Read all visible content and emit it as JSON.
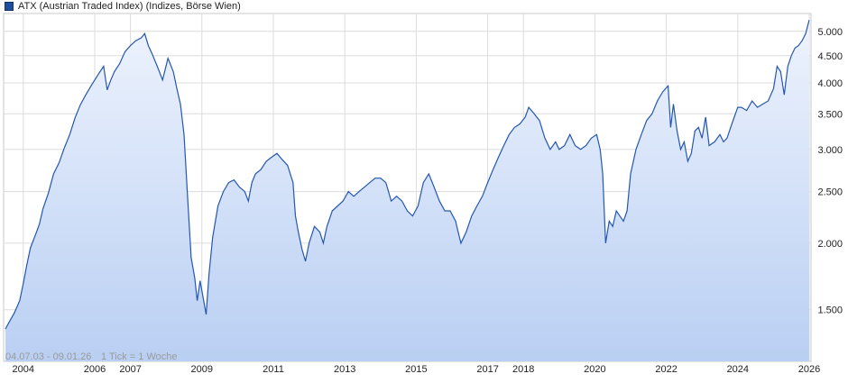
{
  "legend": {
    "label": "ATX (Austrian Traded Index) (Indizes, Börse Wien)",
    "color": "#1f4e9c"
  },
  "footer": {
    "range": "04.07.03 - 09.01.26",
    "tick_info": "1 Tick = 1 Woche"
  },
  "watermark": "",
  "chart_data": {
    "type": "area",
    "yscale": "log",
    "ylim": [
      1200,
      5400
    ],
    "xlim": [
      2003.45,
      2026.05
    ],
    "y_ticks": [
      {
        "value": 1500,
        "label": "1.500"
      },
      {
        "value": 2000,
        "label": "2.000"
      },
      {
        "value": 2500,
        "label": "2.500"
      },
      {
        "value": 3000,
        "label": "3.000"
      },
      {
        "value": 3500,
        "label": "3.500"
      },
      {
        "value": 4000,
        "label": "4.000"
      },
      {
        "value": 4500,
        "label": "4.500"
      },
      {
        "value": 5000,
        "label": "5.000"
      }
    ],
    "x_ticks": [
      {
        "value": 2004,
        "label": "2004"
      },
      {
        "value": 2006,
        "label": "2006"
      },
      {
        "value": 2007,
        "label": "2007"
      },
      {
        "value": 2009,
        "label": "2009"
      },
      {
        "value": 2011,
        "label": "2011"
      },
      {
        "value": 2013,
        "label": "2013"
      },
      {
        "value": 2015,
        "label": "2015"
      },
      {
        "value": 2017,
        "label": "2017"
      },
      {
        "value": 2018,
        "label": "2018"
      },
      {
        "value": 2020,
        "label": "2020"
      },
      {
        "value": 2022,
        "label": "2022"
      },
      {
        "value": 2024,
        "label": "2024"
      },
      {
        "value": 2026,
        "label": "2026"
      }
    ],
    "grid": true,
    "series": [
      {
        "color": "#2457b0",
        "fill_top": "#eef3fd",
        "fill_bottom": "#b9cff3",
        "x": [
          2003.5,
          2003.6,
          2003.75,
          2003.9,
          2004.0,
          2004.1,
          2004.2,
          2004.35,
          2004.45,
          2004.55,
          2004.7,
          2004.85,
          2005.0,
          2005.15,
          2005.3,
          2005.45,
          2005.6,
          2005.75,
          2005.9,
          2006.1,
          2006.25,
          2006.35,
          2006.45,
          2006.55,
          2006.7,
          2006.85,
          2007.0,
          2007.15,
          2007.3,
          2007.4,
          2007.5,
          2007.6,
          2007.75,
          2007.9,
          2008.05,
          2008.2,
          2008.3,
          2008.4,
          2008.5,
          2008.6,
          2008.7,
          2008.8,
          2008.87,
          2008.95,
          2009.05,
          2009.12,
          2009.2,
          2009.3,
          2009.45,
          2009.6,
          2009.75,
          2009.9,
          2010.05,
          2010.2,
          2010.3,
          2010.4,
          2010.5,
          2010.65,
          2010.8,
          2010.95,
          2011.1,
          2011.25,
          2011.4,
          2011.55,
          2011.62,
          2011.7,
          2011.8,
          2011.9,
          2012.0,
          2012.15,
          2012.3,
          2012.4,
          2012.5,
          2012.65,
          2012.8,
          2012.95,
          2013.1,
          2013.25,
          2013.4,
          2013.55,
          2013.7,
          2013.85,
          2014.0,
          2014.15,
          2014.3,
          2014.45,
          2014.6,
          2014.75,
          2014.9,
          2015.05,
          2015.2,
          2015.35,
          2015.5,
          2015.65,
          2015.8,
          2015.95,
          2016.1,
          2016.25,
          2016.4,
          2016.55,
          2016.7,
          2016.85,
          2017.0,
          2017.15,
          2017.3,
          2017.45,
          2017.6,
          2017.75,
          2017.9,
          2018.05,
          2018.15,
          2018.3,
          2018.45,
          2018.6,
          2018.75,
          2018.9,
          2019.0,
          2019.15,
          2019.3,
          2019.45,
          2019.6,
          2019.75,
          2019.9,
          2020.05,
          2020.15,
          2020.22,
          2020.3,
          2020.4,
          2020.5,
          2020.6,
          2020.7,
          2020.8,
          2020.9,
          2021.0,
          2021.15,
          2021.3,
          2021.45,
          2021.6,
          2021.75,
          2021.9,
          2022.05,
          2022.12,
          2022.2,
          2022.3,
          2022.4,
          2022.5,
          2022.6,
          2022.7,
          2022.8,
          2022.9,
          2023.0,
          2023.1,
          2023.2,
          2023.35,
          2023.5,
          2023.6,
          2023.7,
          2023.8,
          2023.9,
          2024.0,
          2024.1,
          2024.25,
          2024.4,
          2024.55,
          2024.7,
          2024.85,
          2025.0,
          2025.1,
          2025.2,
          2025.3,
          2025.4,
          2025.5,
          2025.6,
          2025.7,
          2025.8,
          2025.9,
          2026.0
        ],
        "y": [
          1380,
          1420,
          1480,
          1560,
          1680,
          1820,
          1960,
          2080,
          2170,
          2320,
          2480,
          2700,
          2830,
          3020,
          3200,
          3440,
          3640,
          3800,
          3950,
          4150,
          4300,
          3880,
          4050,
          4200,
          4350,
          4580,
          4700,
          4800,
          4860,
          4950,
          4700,
          4550,
          4300,
          4050,
          4450,
          4200,
          3900,
          3650,
          3200,
          2450,
          1880,
          1720,
          1560,
          1700,
          1560,
          1470,
          1750,
          2050,
          2350,
          2500,
          2600,
          2630,
          2550,
          2500,
          2400,
          2600,
          2700,
          2750,
          2850,
          2900,
          2950,
          2870,
          2800,
          2600,
          2250,
          2100,
          1950,
          1850,
          2000,
          2150,
          2100,
          2000,
          2150,
          2300,
          2350,
          2400,
          2500,
          2450,
          2500,
          2550,
          2600,
          2650,
          2650,
          2600,
          2400,
          2450,
          2400,
          2300,
          2250,
          2350,
          2600,
          2700,
          2550,
          2400,
          2300,
          2300,
          2200,
          2000,
          2100,
          2250,
          2350,
          2450,
          2600,
          2750,
          2900,
          3050,
          3200,
          3300,
          3350,
          3450,
          3600,
          3500,
          3400,
          3150,
          3000,
          3100,
          3000,
          3050,
          3200,
          3050,
          3000,
          3050,
          3150,
          3200,
          3000,
          2700,
          2000,
          2200,
          2150,
          2300,
          2250,
          2200,
          2300,
          2700,
          3000,
          3200,
          3400,
          3500,
          3700,
          3850,
          3950,
          3300,
          3650,
          3250,
          3000,
          3100,
          2850,
          2950,
          3250,
          3300,
          3150,
          3450,
          3050,
          3100,
          3200,
          3100,
          3150,
          3300,
          3450,
          3600,
          3600,
          3550,
          3700,
          3600,
          3650,
          3700,
          3900,
          4300,
          4200,
          3800,
          4300,
          4500,
          4650,
          4700,
          4800,
          4950,
          5250
        ]
      }
    ]
  }
}
